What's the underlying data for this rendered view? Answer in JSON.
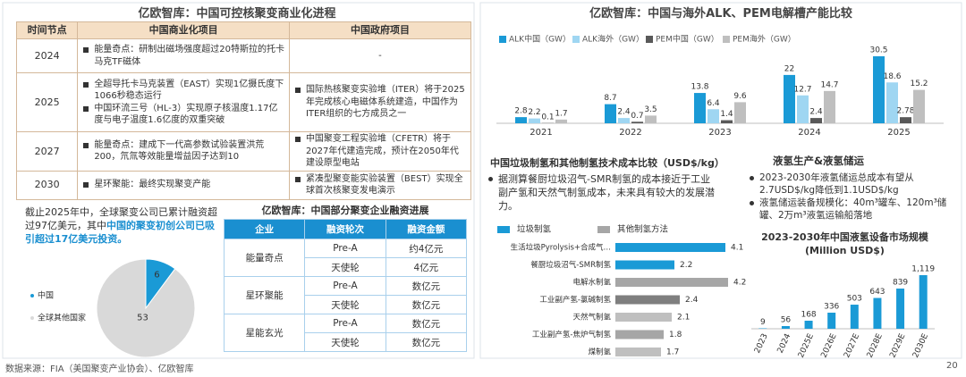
{
  "left_title": "亿欧智库：中国可控核聚变商业化进程",
  "timeline_table": {
    "headers": [
      "时间节点",
      "中国商业化项目",
      "中国政府项目"
    ],
    "rows": [
      {
        "year": "2024",
        "commercial": [
          "能量奇点：研制出磁场强度超过20特斯拉的托卡马克TF磁体"
        ],
        "government": [
          "-"
        ]
      },
      {
        "year": "2025",
        "commercial": [
          "全超导托卡马克装置（EAST）实现1亿摄氏度下1066秒稳态运行",
          "中国环流三号（HL-3）实现原子核温度1.17亿度与电子温度1.6亿度的双重突破"
        ],
        "government": [
          "国际热核聚变实验堆（ITER）将于2025年完成核心电磁体系统建造，中国作为ITER组织的七方成员之一"
        ]
      },
      {
        "year": "2027",
        "commercial": [
          "能量奇点：建成下一代高参数试验装置洪荒200，氘氚等效能量增益因子达到10"
        ],
        "government": [
          "中国聚变工程实验堆（CFETR）将于2027年代建造完成，预计在2050年代建设原型电站"
        ]
      },
      {
        "year": "2030",
        "commercial": [
          "星环聚能：最终实现聚变产能"
        ],
        "government": [
          "紧凑型聚变能实验装置（BEST）实现全球首次核聚变发电演示"
        ]
      }
    ]
  },
  "funding_note": {
    "text": "截止2025年中，全球聚变公司已累计融资超过97亿美元，其中",
    "highlight": "中国的聚变初创公司已吸引超过17亿美元投资。"
  },
  "funding_table": {
    "title": "亿欧智库：中国部分聚变企业融资进展",
    "headers": [
      "企业",
      "融资轮次",
      "融资金额"
    ],
    "groups": [
      {
        "company": "能量奇点",
        "rounds": [
          [
            "Pre-A",
            "约4亿元"
          ],
          [
            "天使轮",
            "4亿元"
          ]
        ]
      },
      {
        "company": "星环聚能",
        "rounds": [
          [
            "Pre-A",
            "数亿元"
          ],
          [
            "天使轮",
            "数亿元"
          ]
        ]
      },
      {
        "company": "星能玄光",
        "rounds": [
          [
            "Pre-A",
            "数亿元"
          ],
          [
            "天使轮",
            "数亿元"
          ]
        ]
      }
    ]
  },
  "hydrogen_storage": {
    "title": "液氢生产&液氢储运",
    "bullets": [
      "2023-2030年液氢储运总成本有望从2.7USD$/kg降低到1.1USD$/kg",
      "液氢储运装备规模化：40m³罐车、120m³储罐、2万m³液氢运输船落地"
    ]
  },
  "source": "数据来源：FIA（美国聚变产业协会）、亿欧智库",
  "page_number": "20",
  "chart_data": [
    {
      "type": "pie",
      "categories": [
        "中国",
        "全球其他国家"
      ],
      "values": [
        6,
        53
      ],
      "colors": [
        "#1a9ad6",
        "#d9d9d9"
      ]
    },
    {
      "type": "bar",
      "title": "亿欧智库：中国与海外ALK、PEM电解槽产能比较",
      "categories": [
        "2021",
        "2022",
        "2023",
        "2024",
        "2025"
      ],
      "series": [
        {
          "name": "ALK中国（GW）",
          "color": "#1a9ad6",
          "values": [
            2.8,
            8.7,
            13.8,
            22,
            30.5
          ]
        },
        {
          "name": "ALK海外（GW）",
          "color": "#9fd6f2",
          "values": [
            2.2,
            2.4,
            6.4,
            12.7,
            18.6
          ]
        },
        {
          "name": "PEM中国（GW）",
          "color": "#595959",
          "values": [
            0.1,
            0.7,
            1.4,
            2.4,
            2.78
          ]
        },
        {
          "name": "PEM海外（GW）",
          "color": "#bfbfbf",
          "values": [
            1.7,
            3.5,
            9.6,
            14.7,
            15.2
          ]
        }
      ]
    },
    {
      "type": "barh",
      "title": "中国垃圾制氢和其他制氢技术成本比较（USD$/kg）",
      "annotation": "据测算餐厨垃圾沼气-SMR制氢的成本接近于工业副产氢和天然气制氢成本，未来具有较大的发展潜力。",
      "legend": [
        {
          "name": "垃圾制氢",
          "color": "#1a9ad6"
        },
        {
          "name": "其他制氢方法",
          "color": "#a6a6a6"
        }
      ],
      "categories": [
        "生活垃圾Pyrolysis+合成气…",
        "餐厨垃圾沼气-SMR制氢",
        "电解水制氢",
        "工业副产氢-氯碱制氢",
        "天然气制氢",
        "工业副产氢-焦炉气制氢",
        "煤制氢"
      ],
      "values": [
        4.1,
        2.2,
        4.2,
        2.4,
        2.1,
        1.8,
        1.7
      ],
      "colors": [
        "#1a9ad6",
        "#1a9ad6",
        "#a6a6a6",
        "#7f7f7f",
        "#bfbfbf",
        "#a6a6a6",
        "#bfbfbf"
      ]
    },
    {
      "type": "bar",
      "title": "2023-2030年中国液氢设备市场规模",
      "subtitle": "(Million USD$)",
      "categories": [
        "2023",
        "2024",
        "2025E",
        "2026E",
        "2027E",
        "2028E",
        "2029E",
        "2030E"
      ],
      "values": [
        9,
        56,
        168,
        336,
        503,
        643,
        839,
        1119
      ],
      "value_labels": [
        "9",
        "56",
        "168",
        "336",
        "503",
        "643",
        "839",
        "1,119"
      ],
      "color": "#1a9ad6"
    }
  ]
}
